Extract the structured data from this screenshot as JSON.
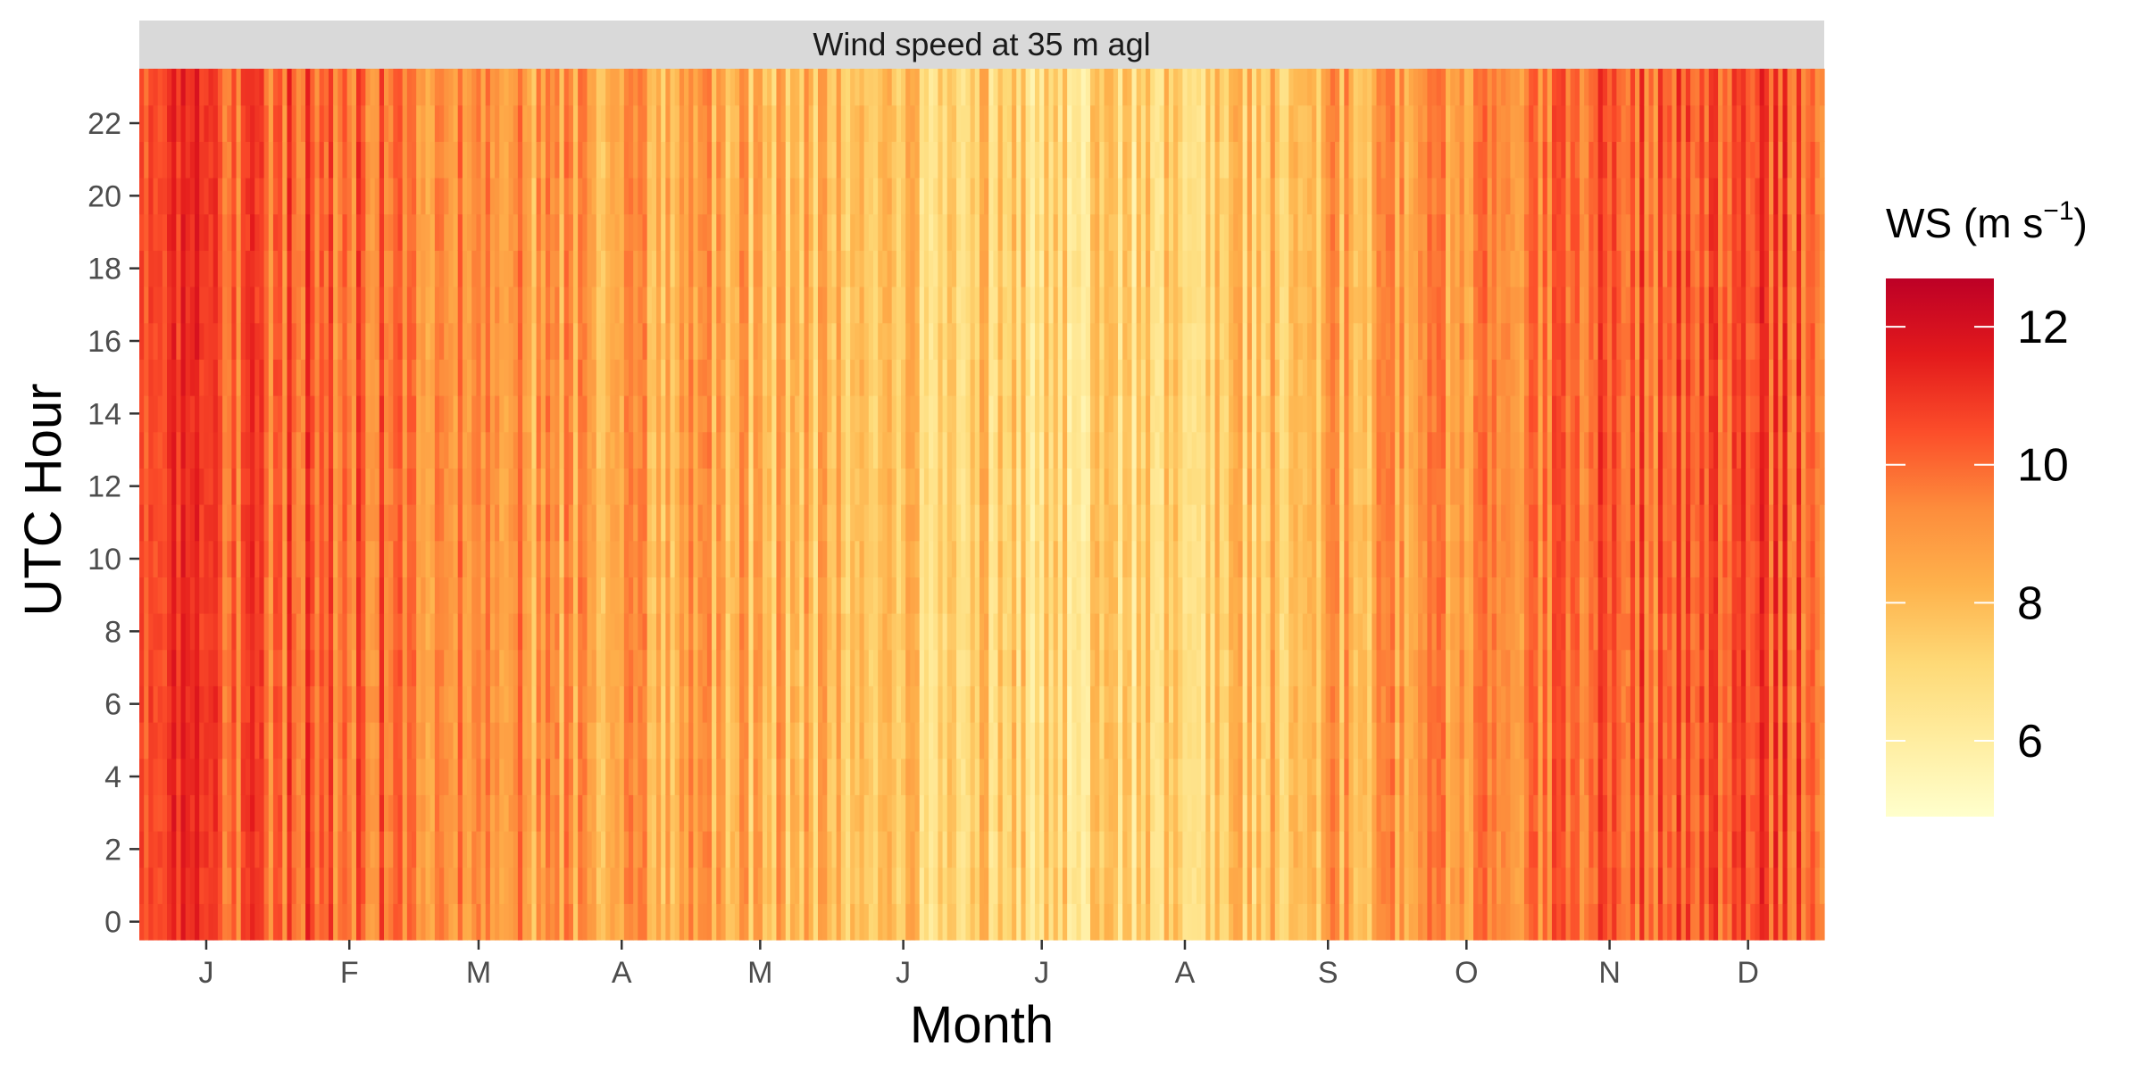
{
  "chart_data": {
    "type": "heatmap",
    "title": "Wind speed at 35 m agl",
    "xlabel": "Month",
    "ylabel": "UTC Hour",
    "x_unit": "day of year",
    "x_range": [
      1,
      365
    ],
    "x_ticks": [
      {
        "label": "J",
        "day": 15
      },
      {
        "label": "F",
        "day": 46
      },
      {
        "label": "M",
        "day": 74
      },
      {
        "label": "A",
        "day": 105
      },
      {
        "label": "M",
        "day": 135
      },
      {
        "label": "J",
        "day": 166
      },
      {
        "label": "J",
        "day": 196
      },
      {
        "label": "A",
        "day": 227
      },
      {
        "label": "S",
        "day": 258
      },
      {
        "label": "O",
        "day": 288
      },
      {
        "label": "N",
        "day": 319
      },
      {
        "label": "D",
        "day": 349
      }
    ],
    "y_range": [
      0,
      23
    ],
    "y_ticks": [
      0,
      2,
      4,
      6,
      8,
      10,
      12,
      14,
      16,
      18,
      20,
      22
    ],
    "monthly_mean_ws": [
      {
        "month": "J",
        "ws": 10.4
      },
      {
        "month": "F",
        "ws": 10.1
      },
      {
        "month": "M",
        "ws": 9.0
      },
      {
        "month": "A",
        "ws": 8.6
      },
      {
        "month": "M",
        "ws": 8.2
      },
      {
        "month": "J",
        "ws": 7.6
      },
      {
        "month": "J",
        "ws": 7.0
      },
      {
        "month": "A",
        "ws": 7.1
      },
      {
        "month": "S",
        "ws": 8.4
      },
      {
        "month": "O",
        "ws": 9.3
      },
      {
        "month": "N",
        "ws": 10.0
      },
      {
        "month": "D",
        "ws": 10.3
      }
    ],
    "legend": {
      "title": "WS (m s",
      "title_sup": "−1",
      "title_close": ")",
      "min": 4.9,
      "max": 12.7,
      "breaks": [
        6,
        8,
        10,
        12
      ],
      "colors": [
        "#ffffcc",
        "#ffeda0",
        "#fed976",
        "#feb24c",
        "#fd8d3c",
        "#fc4e2a",
        "#e31a1c",
        "#bd0026"
      ]
    },
    "panel_bg": "#d9d9d9",
    "tick_color": "#333333"
  }
}
